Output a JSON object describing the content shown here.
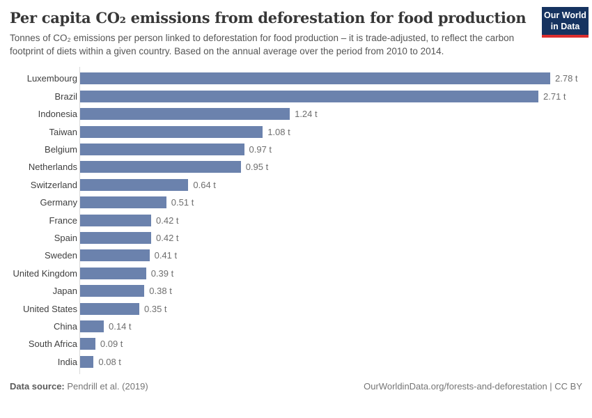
{
  "header": {
    "title": "Per capita CO₂ emissions from deforestation for food production",
    "logo": {
      "line1": "Our World",
      "line2": "in Data"
    }
  },
  "subtitle": "Tonnes of CO₂ emissions per person linked to deforestation for food production – it is trade-adjusted, to reflect the carbon footprint of diets within a given country. Based on the annual average over the period from 2010 to 2014.",
  "chart_data": {
    "type": "bar",
    "orientation": "horizontal",
    "title": "Per capita CO₂ emissions from deforestation for food production",
    "unit": "t",
    "grid": false,
    "xlim": [
      0,
      2.78
    ],
    "bar_color": "#6b82ad",
    "categories": [
      "Luxembourg",
      "Brazil",
      "Indonesia",
      "Taiwan",
      "Belgium",
      "Netherlands",
      "Switzerland",
      "Germany",
      "France",
      "Spain",
      "Sweden",
      "United Kingdom",
      "Japan",
      "United States",
      "China",
      "South Africa",
      "India"
    ],
    "values": [
      2.78,
      2.71,
      1.24,
      1.08,
      0.97,
      0.95,
      0.64,
      0.51,
      0.42,
      0.42,
      0.41,
      0.39,
      0.38,
      0.35,
      0.14,
      0.09,
      0.08
    ],
    "value_labels": [
      "2.78 t",
      "2.71 t",
      "1.24 t",
      "1.08 t",
      "0.97 t",
      "0.95 t",
      "0.64 t",
      "0.51 t",
      "0.42 t",
      "0.42 t",
      "0.41 t",
      "0.39 t",
      "0.38 t",
      "0.35 t",
      "0.14 t",
      "0.09 t",
      "0.08 t"
    ]
  },
  "footer": {
    "datasource_label": "Data source:",
    "datasource_value": "Pendrill et al. (2019)",
    "url_text": "OurWorldinData.org/forests-and-deforestation | CC BY"
  },
  "colors": {
    "bar": "#6b82ad",
    "logo_navy": "#163360",
    "logo_red": "#dc2e2e",
    "axis_line": "#d9d9d9",
    "title_text": "#373737",
    "subtitle_text": "#555555",
    "value_text": "#6e6e6e"
  }
}
